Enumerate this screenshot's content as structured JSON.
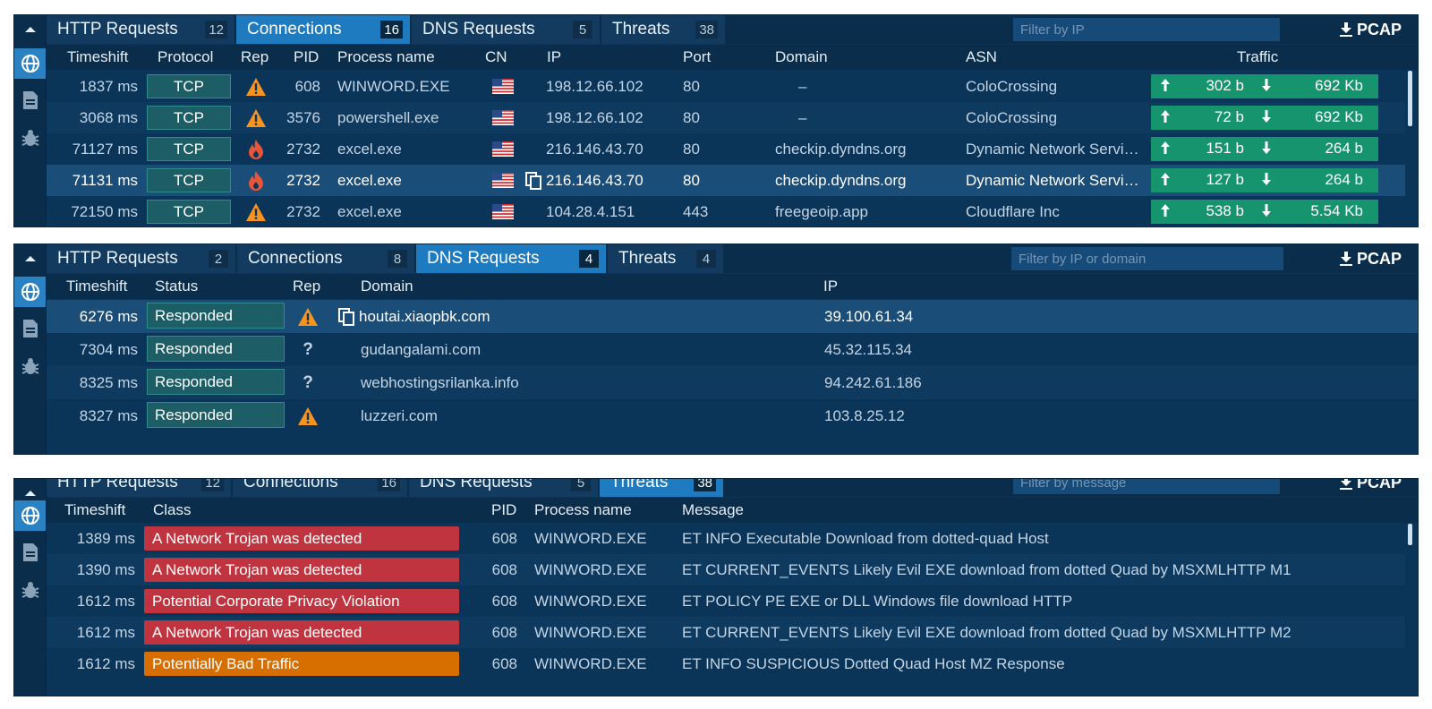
{
  "colors": {
    "panel_bg": "#0a3458",
    "active_tab": "#1f7bc0",
    "proto_badge": "#1d5d66",
    "traffic_green": "#16946e",
    "trojan_red": "#c0343f",
    "bad_traffic_orange": "#d66e00",
    "warning_orange": "#f7931e",
    "fire_red": "#e8563a"
  },
  "pcap_label": "PCAP",
  "panel1": {
    "tabs": [
      {
        "label": "HTTP Requests",
        "count": "12"
      },
      {
        "label": "Connections",
        "count": "16"
      },
      {
        "label": "DNS Requests",
        "count": "5"
      },
      {
        "label": "Threats",
        "count": "38"
      }
    ],
    "filter_placeholder": "Filter by IP",
    "headers": {
      "timeshift": "Timeshift",
      "protocol": "Protocol",
      "rep": "Rep",
      "pid": "PID",
      "process": "Process name",
      "cn": "CN",
      "ip": "IP",
      "port": "Port",
      "domain": "Domain",
      "asn": "ASN",
      "traffic": "Traffic"
    },
    "rows": [
      {
        "time": "1837 ms",
        "proto": "TCP",
        "rep": "warning",
        "pid": "608",
        "process": "WINWORD.EXE",
        "cn": "us-flag",
        "ip": "198.12.66.102",
        "port": "80",
        "domain": "–",
        "asn": "ColoCrossing",
        "up": "302 b",
        "down": "692 Kb"
      },
      {
        "time": "3068 ms",
        "proto": "TCP",
        "rep": "warning",
        "pid": "3576",
        "process": "powershell.exe",
        "cn": "us-flag",
        "ip": "198.12.66.102",
        "port": "80",
        "domain": "–",
        "asn": "ColoCrossing",
        "up": "72 b",
        "down": "692 Kb"
      },
      {
        "time": "71127 ms",
        "proto": "TCP",
        "rep": "fire",
        "pid": "2732",
        "process": "excel.exe",
        "cn": "us-flag",
        "ip": "216.146.43.70",
        "port": "80",
        "domain": "checkip.dyndns.org",
        "asn": "Dynamic Network Servi…",
        "up": "151 b",
        "down": "264 b"
      },
      {
        "time": "71131 ms",
        "proto": "TCP",
        "rep": "fire",
        "pid": "2732",
        "process": "excel.exe",
        "cn": "us-flag",
        "ip": "216.146.43.70",
        "port": "80",
        "domain": "checkip.dyndns.org",
        "asn": "Dynamic Network Servi…",
        "up": "127 b",
        "down": "264 b"
      },
      {
        "time": "72150 ms",
        "proto": "TCP",
        "rep": "warning",
        "pid": "2732",
        "process": "excel.exe",
        "cn": "us-flag",
        "ip": "104.28.4.151",
        "port": "443",
        "domain": "freegeoip.app",
        "asn": "Cloudflare Inc",
        "up": "538 b",
        "down": "5.54 Kb"
      }
    ]
  },
  "panel2": {
    "tabs": [
      {
        "label": "HTTP Requests",
        "count": "2"
      },
      {
        "label": "Connections",
        "count": "8"
      },
      {
        "label": "DNS Requests",
        "count": "4"
      },
      {
        "label": "Threats",
        "count": "4"
      }
    ],
    "filter_placeholder": "Filter by IP or domain",
    "headers": {
      "timeshift": "Timeshift",
      "status": "Status",
      "rep": "Rep",
      "domain": "Domain",
      "ip": "IP"
    },
    "rows": [
      {
        "time": "6276 ms",
        "status": "Responded",
        "rep": "warning",
        "domain": "houtai.xiaopbk.com",
        "ip": "39.100.61.34"
      },
      {
        "time": "7304 ms",
        "status": "Responded",
        "rep": "unknown",
        "domain": "gudangalami.com",
        "ip": "45.32.115.34"
      },
      {
        "time": "8325 ms",
        "status": "Responded",
        "rep": "unknown",
        "domain": "webhostingsrilanka.info",
        "ip": "94.242.61.186"
      },
      {
        "time": "8327 ms",
        "status": "Responded",
        "rep": "warning",
        "domain": "luzzeri.com",
        "ip": "103.8.25.12"
      }
    ],
    "unknown_glyph": "?"
  },
  "panel3": {
    "tabs": [
      {
        "label": "HTTP Requests",
        "count": "12"
      },
      {
        "label": "Connections",
        "count": "16"
      },
      {
        "label": "DNS Requests",
        "count": "5"
      },
      {
        "label": "Threats",
        "count": "38"
      }
    ],
    "filter_placeholder": "Filter by message",
    "headers": {
      "timeshift": "Timeshift",
      "class": "Class",
      "pid": "PID",
      "process": "Process name",
      "message": "Message"
    },
    "rows": [
      {
        "time": "1389 ms",
        "class": "A Network Trojan was detected",
        "severity": "red",
        "pid": "608",
        "process": "WINWORD.EXE",
        "message": "ET INFO Executable Download from dotted-quad Host"
      },
      {
        "time": "1390 ms",
        "class": "A Network Trojan was detected",
        "severity": "red",
        "pid": "608",
        "process": "WINWORD.EXE",
        "message": "ET CURRENT_EVENTS Likely Evil EXE download from dotted Quad by MSXMLHTTP M1"
      },
      {
        "time": "1612 ms",
        "class": "Potential Corporate Privacy Violation",
        "severity": "red",
        "pid": "608",
        "process": "WINWORD.EXE",
        "message": "ET POLICY PE EXE or DLL Windows file download HTTP"
      },
      {
        "time": "1612 ms",
        "class": "A Network Trojan was detected",
        "severity": "red",
        "pid": "608",
        "process": "WINWORD.EXE",
        "message": "ET CURRENT_EVENTS Likely Evil EXE download from dotted Quad by MSXMLHTTP M2"
      },
      {
        "time": "1612 ms",
        "class": "Potentially Bad Traffic",
        "severity": "orange",
        "pid": "608",
        "process": "WINWORD.EXE",
        "message": "ET INFO SUSPICIOUS Dotted Quad Host MZ Response"
      }
    ]
  }
}
